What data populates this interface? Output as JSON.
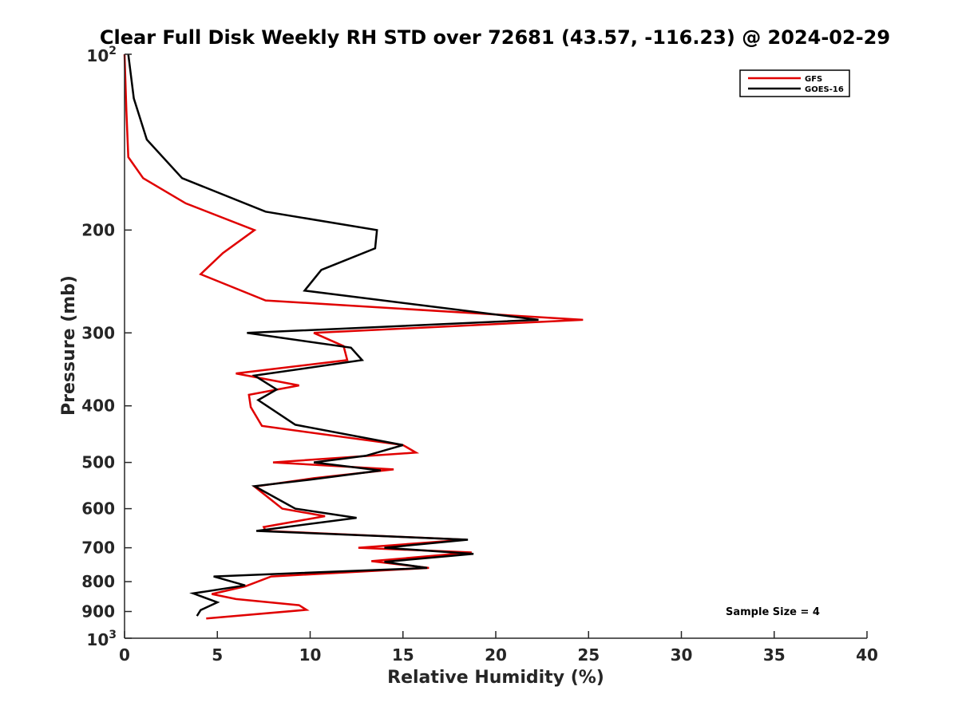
{
  "chart_data": {
    "type": "line",
    "title": "Clear Full Disk Weekly RH STD over 72681 (43.57, -116.23) @ 2024-02-29",
    "xlabel": "Relative Humidity (%)",
    "ylabel": "Pressure (mb)",
    "xlim": [
      0,
      40
    ],
    "ylim": [
      100,
      1000
    ],
    "y_scale": "log",
    "y_reversed": true,
    "x_ticks": [
      "0",
      "5",
      "10",
      "15",
      "20",
      "25",
      "30",
      "35",
      "40"
    ],
    "y_ticks": [
      {
        "value": 100,
        "label": "10",
        "sup": "2"
      },
      {
        "value": 200,
        "label": "200"
      },
      {
        "value": 300,
        "label": "300"
      },
      {
        "value": 400,
        "label": "400"
      },
      {
        "value": 500,
        "label": "500"
      },
      {
        "value": 600,
        "label": "600"
      },
      {
        "value": 700,
        "label": "700"
      },
      {
        "value": 800,
        "label": "800"
      },
      {
        "value": 900,
        "label": "900"
      },
      {
        "value": 1000,
        "label": "10",
        "sup": "3"
      }
    ],
    "legend_position": "top-right",
    "annotation": "Sample Size = 4",
    "series": [
      {
        "name": "GFS",
        "color": "#e00000",
        "points": [
          [
            0.0,
            100
          ],
          [
            0.1,
            125
          ],
          [
            0.2,
            150
          ],
          [
            1.0,
            163
          ],
          [
            3.3,
            180
          ],
          [
            7.0,
            200
          ],
          [
            5.3,
            219
          ],
          [
            4.1,
            238
          ],
          [
            7.6,
            264
          ],
          [
            24.7,
            285
          ],
          [
            10.2,
            300
          ],
          [
            11.8,
            316
          ],
          [
            12.0,
            334
          ],
          [
            6.0,
            352
          ],
          [
            9.4,
            369
          ],
          [
            6.7,
            383
          ],
          [
            6.8,
            402
          ],
          [
            7.4,
            433
          ],
          [
            15.0,
            467
          ],
          [
            15.7,
            481
          ],
          [
            8.0,
            500
          ],
          [
            14.5,
            514
          ],
          [
            10.2,
            532
          ],
          [
            7.0,
            550
          ],
          [
            8.5,
            600
          ],
          [
            10.8,
            618
          ],
          [
            7.5,
            645
          ],
          [
            7.6,
            655
          ],
          [
            18.4,
            678
          ],
          [
            12.6,
            700
          ],
          [
            18.7,
            713
          ],
          [
            13.3,
            738
          ],
          [
            16.4,
            758
          ],
          [
            7.9,
            784
          ],
          [
            6.5,
            815
          ],
          [
            4.7,
            840
          ],
          [
            6.0,
            857
          ],
          [
            9.4,
            878
          ],
          [
            9.8,
            894
          ],
          [
            4.4,
            925
          ]
        ]
      },
      {
        "name": "GOES-16",
        "color": "#000000",
        "points": [
          [
            0.2,
            100
          ],
          [
            0.5,
            119
          ],
          [
            1.2,
            140
          ],
          [
            3.1,
            163
          ],
          [
            7.6,
            186
          ],
          [
            13.6,
            200
          ],
          [
            13.5,
            215
          ],
          [
            10.6,
            234
          ],
          [
            9.7,
            254
          ],
          [
            22.3,
            285
          ],
          [
            6.6,
            300
          ],
          [
            12.2,
            318
          ],
          [
            12.8,
            334
          ],
          [
            7.0,
            355
          ],
          [
            8.2,
            375
          ],
          [
            7.2,
            391
          ],
          [
            9.2,
            431
          ],
          [
            15.0,
            467
          ],
          [
            13.0,
            487
          ],
          [
            10.2,
            500
          ],
          [
            13.8,
            516
          ],
          [
            10.0,
            535
          ],
          [
            7.0,
            549
          ],
          [
            9.2,
            600
          ],
          [
            12.5,
            622
          ],
          [
            7.1,
            655
          ],
          [
            18.5,
            678
          ],
          [
            14.0,
            700
          ],
          [
            18.8,
            717
          ],
          [
            14.0,
            740
          ],
          [
            16.3,
            758
          ],
          [
            4.8,
            784
          ],
          [
            6.5,
            812
          ],
          [
            3.7,
            838
          ],
          [
            5.0,
            868
          ],
          [
            4.1,
            895
          ],
          [
            3.9,
            916
          ]
        ]
      }
    ]
  }
}
